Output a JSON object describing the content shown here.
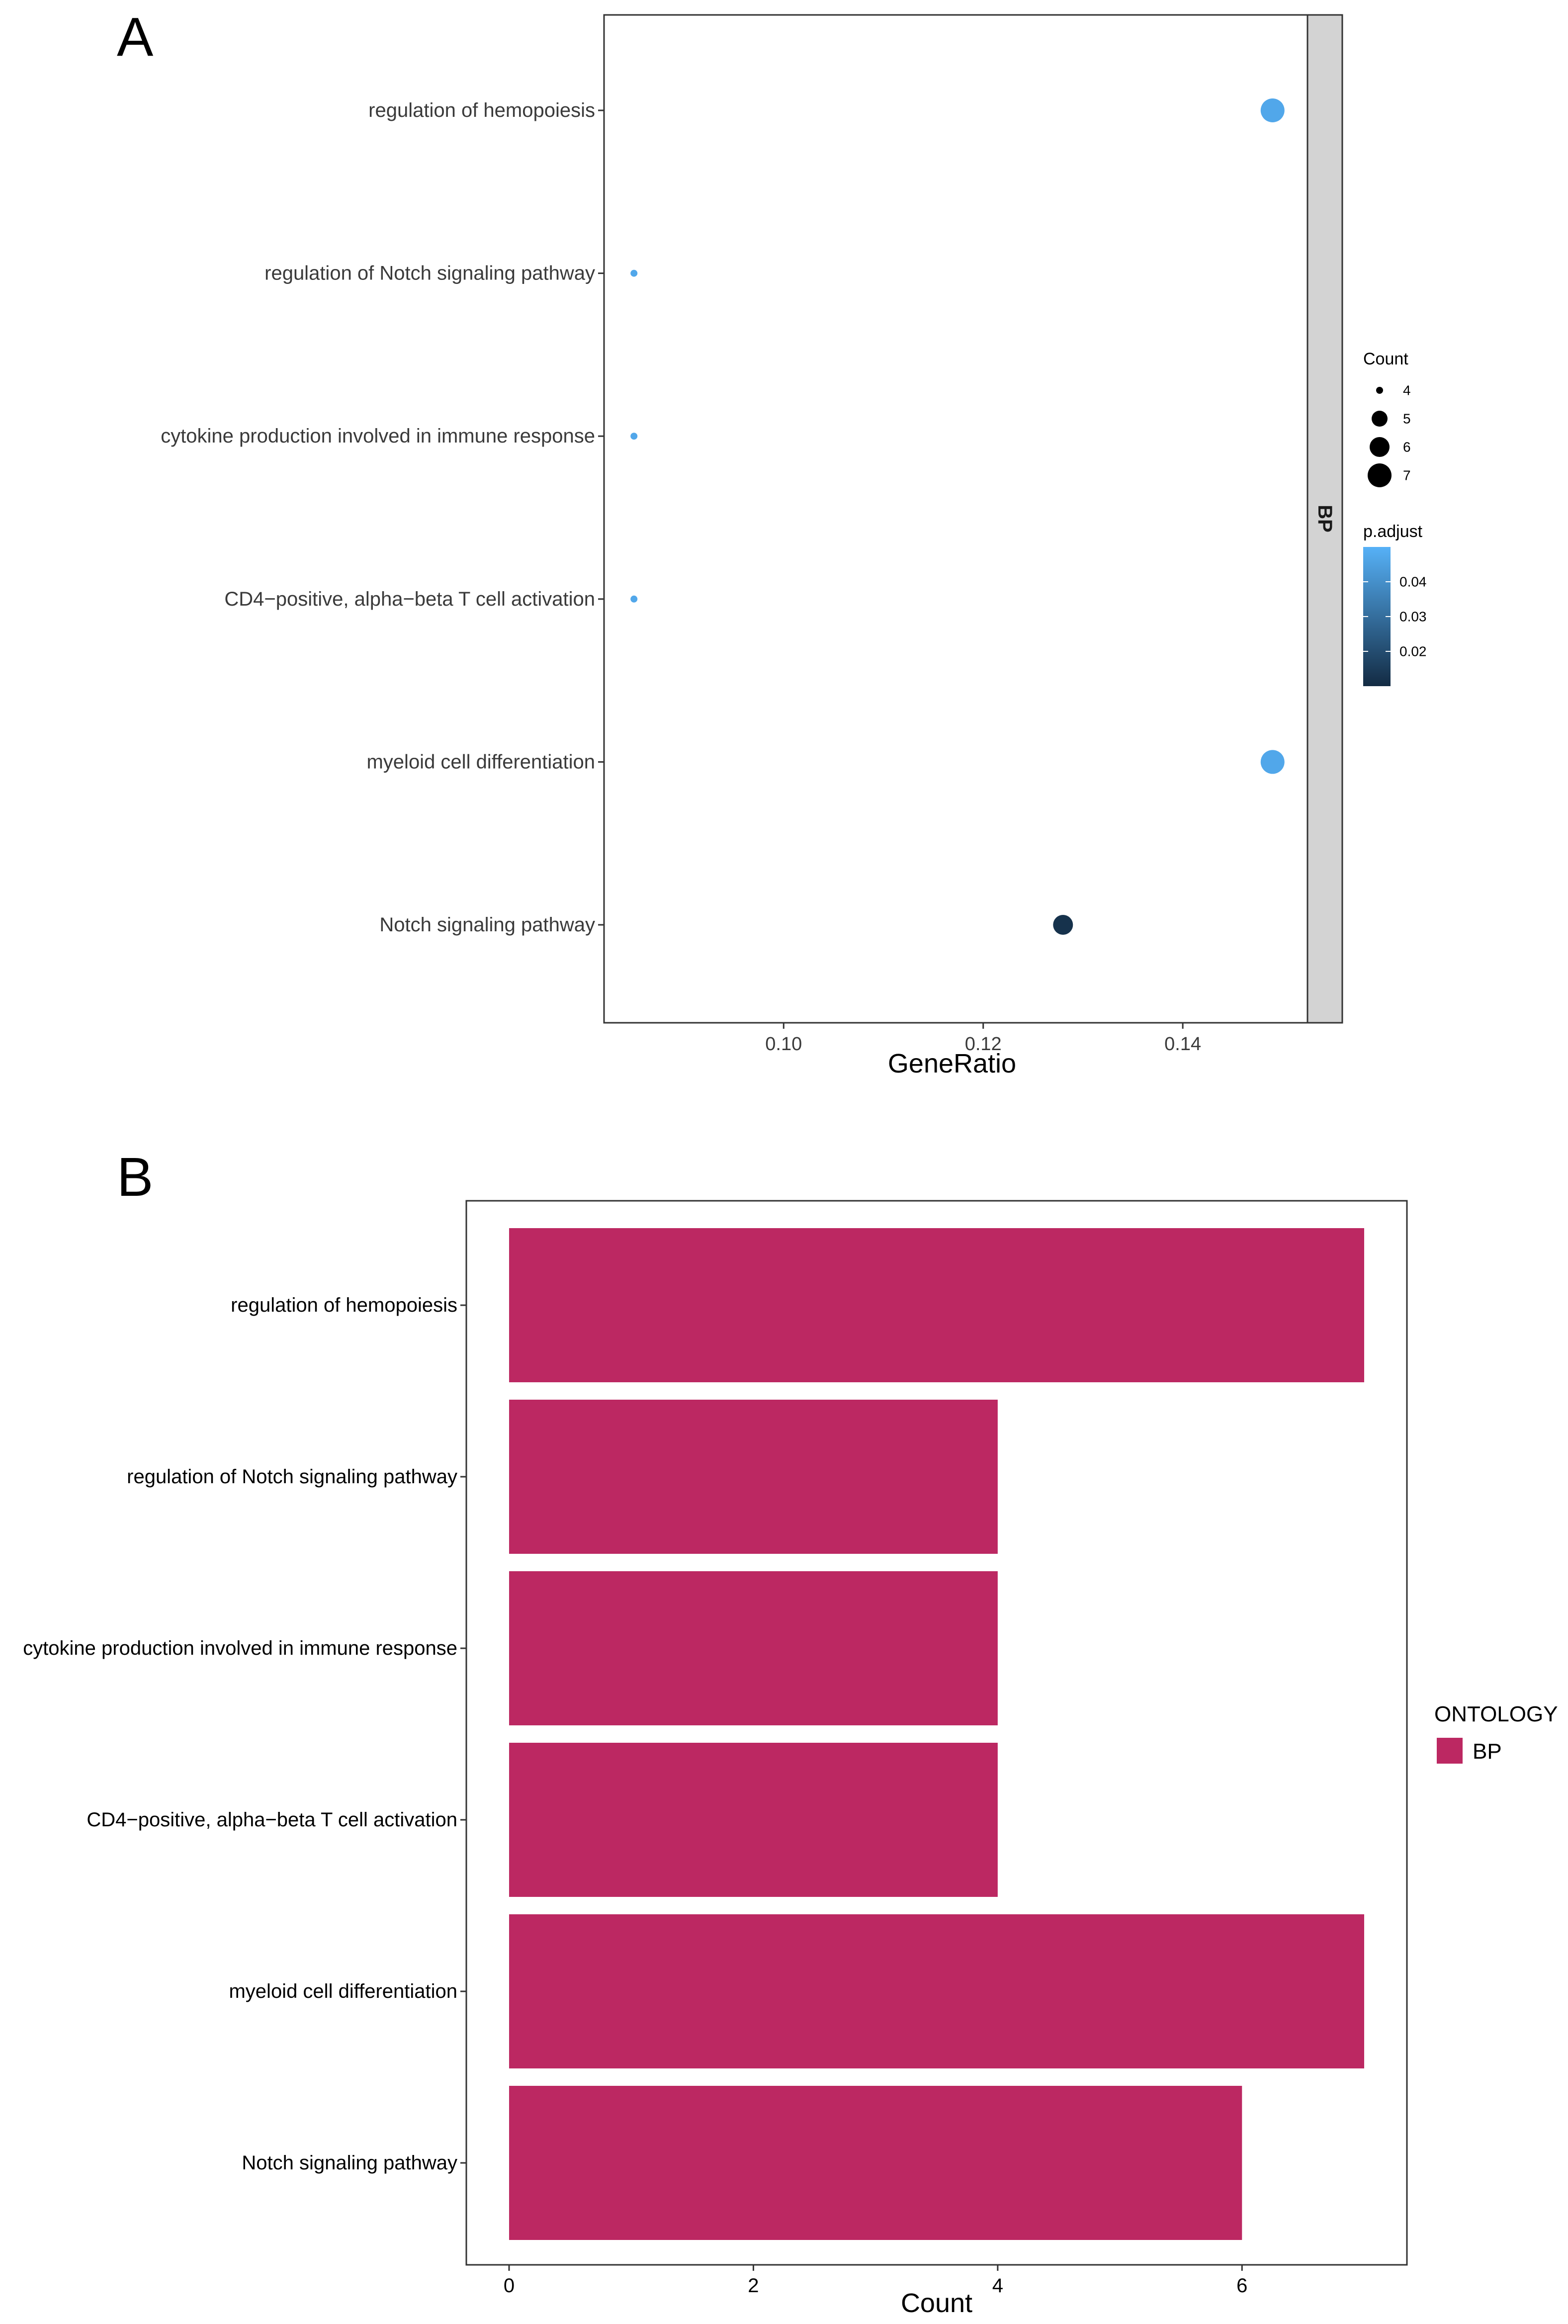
{
  "panel_a": {
    "label": "A"
  },
  "panel_b": {
    "label": "B"
  },
  "colors": {
    "p_low": "#132B43",
    "p_high": "#56B1F7",
    "bar_fill": "#BC2862",
    "strip_fill": "#D3D3D3"
  },
  "chart_data": [
    {
      "type": "scatter",
      "panel": "A",
      "title": "",
      "xlabel": "GeneRatio",
      "ylabel": "",
      "facet_label": "BP",
      "xlim": [
        0.082,
        0.1525
      ],
      "xticks": [
        0.1,
        0.12,
        0.14
      ],
      "xtick_labels": [
        "0.10",
        "0.12",
        "0.14"
      ],
      "categories": [
        "regulation of hemopoiesis",
        "regulation of Notch signaling pathway",
        "cytokine production involved in immune response",
        "CD4−positive, alpha−beta T cell activation",
        "myeloid cell differentiation",
        "Notch signaling pathway"
      ],
      "gene_ratio": [
        0.149,
        0.085,
        0.085,
        0.085,
        0.149,
        0.128
      ],
      "count": [
        7,
        4,
        4,
        4,
        7,
        6
      ],
      "p_adjust": [
        0.047,
        0.047,
        0.047,
        0.047,
        0.047,
        0.012
      ],
      "size_legend": {
        "title": "Count",
        "values": [
          4,
          5,
          6,
          7
        ],
        "labels": [
          "4",
          "5",
          "6",
          "7"
        ]
      },
      "color_legend": {
        "title": "p.adjust",
        "range": [
          0.01,
          0.05
        ],
        "ticks": [
          0.02,
          0.03,
          0.04
        ],
        "labels": [
          "0.02",
          "0.03",
          "0.04"
        ]
      }
    },
    {
      "type": "bar",
      "panel": "B",
      "orientation": "horizontal",
      "title": "",
      "xlabel": "Count",
      "ylabel": "",
      "xlim": [
        -0.35,
        7.35
      ],
      "xticks": [
        0,
        2,
        4,
        6
      ],
      "xtick_labels": [
        "0",
        "2",
        "4",
        "6"
      ],
      "categories": [
        "regulation of hemopoiesis",
        "regulation of Notch signaling pathway",
        "cytokine production involved in immune response",
        "CD4−positive, alpha−beta T cell activation",
        "myeloid cell differentiation",
        "Notch signaling pathway"
      ],
      "values": [
        7,
        4,
        4,
        4,
        7,
        6
      ],
      "legend": {
        "title": "ONTOLOGY",
        "entries": [
          "BP"
        ]
      }
    }
  ]
}
